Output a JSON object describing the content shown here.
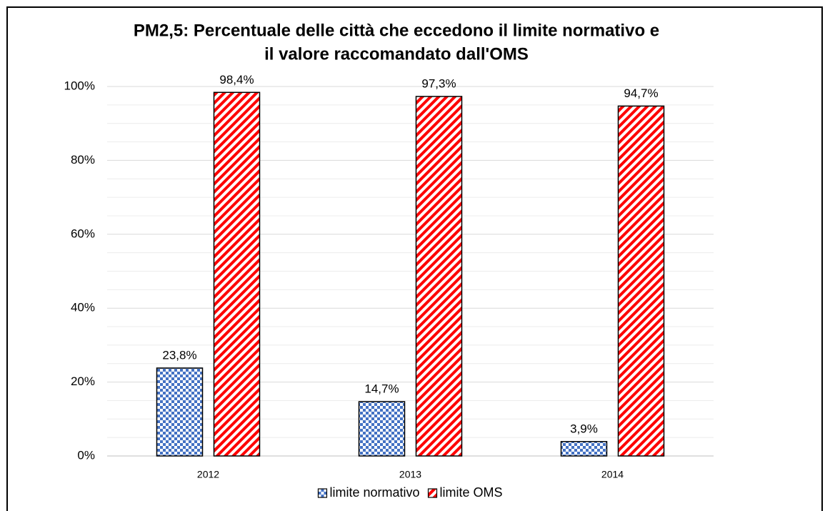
{
  "chart_data": {
    "type": "bar",
    "title": [
      "PM2,5: Percentuale delle città che eccedono il limite normativo e",
      "il valore raccomandato dall'OMS"
    ],
    "categories": [
      "2012",
      "2013",
      "2014"
    ],
    "series": [
      {
        "name": "limite normativo",
        "color": "#4472c4",
        "pattern": "checker",
        "values": [
          23.8,
          14.7,
          3.9
        ],
        "value_labels": [
          "23,8%",
          "14,7%",
          "3,9%"
        ]
      },
      {
        "name": "limite OMS",
        "color": "#ff0000",
        "pattern": "stripes",
        "values": [
          98.4,
          97.3,
          94.7
        ],
        "value_labels": [
          "98,4%",
          "97,3%",
          "94,7%"
        ]
      }
    ],
    "ylim": [
      0,
      100
    ],
    "yticks": [
      {
        "value": 0,
        "label": "0%"
      },
      {
        "value": 20,
        "label": "20%"
      },
      {
        "value": 40,
        "label": "40%"
      },
      {
        "value": 60,
        "label": "60%"
      },
      {
        "value": 80,
        "label": "80%"
      },
      {
        "value": 100,
        "label": "100%"
      }
    ],
    "minor_yticks": [
      5,
      10,
      15,
      25,
      30,
      35,
      45,
      50,
      55,
      65,
      70,
      75,
      85,
      90,
      95
    ],
    "grid": true,
    "legend": "bottom"
  }
}
